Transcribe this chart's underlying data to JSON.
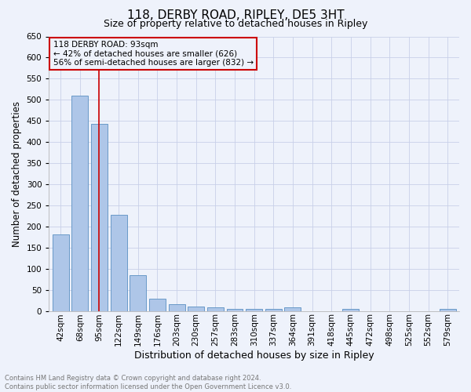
{
  "title": "118, DERBY ROAD, RIPLEY, DE5 3HT",
  "subtitle": "Size of property relative to detached houses in Ripley",
  "xlabel": "Distribution of detached houses by size in Ripley",
  "ylabel": "Number of detached properties",
  "categories": [
    "42sqm",
    "68sqm",
    "95sqm",
    "122sqm",
    "149sqm",
    "176sqm",
    "203sqm",
    "230sqm",
    "257sqm",
    "283sqm",
    "310sqm",
    "337sqm",
    "364sqm",
    "391sqm",
    "418sqm",
    "445sqm",
    "472sqm",
    "498sqm",
    "525sqm",
    "552sqm",
    "579sqm"
  ],
  "values": [
    182,
    510,
    443,
    228,
    84,
    28,
    15,
    10,
    8,
    4,
    4,
    4,
    8,
    0,
    0,
    5,
    0,
    0,
    0,
    0,
    4
  ],
  "bar_color": "#aec6e8",
  "bar_edge_color": "#5a8fc2",
  "highlight_bar_index": 2,
  "highlight_line_color": "#cc0000",
  "ylim": [
    0,
    650
  ],
  "yticks": [
    0,
    50,
    100,
    150,
    200,
    250,
    300,
    350,
    400,
    450,
    500,
    550,
    600,
    650
  ],
  "annotation_box_text": "118 DERBY ROAD: 93sqm\n← 42% of detached houses are smaller (626)\n56% of semi-detached houses are larger (832) →",
  "annotation_box_color": "#cc0000",
  "footer_line1": "Contains HM Land Registry data © Crown copyright and database right 2024.",
  "footer_line2": "Contains public sector information licensed under the Open Government Licence v3.0.",
  "background_color": "#eef2fb",
  "grid_color": "#c8d0e8",
  "title_fontsize": 11,
  "subtitle_fontsize": 9,
  "ylabel_fontsize": 8.5,
  "xlabel_fontsize": 9,
  "tick_fontsize": 7.5,
  "annotation_fontsize": 7.5,
  "footer_fontsize": 6.0
}
